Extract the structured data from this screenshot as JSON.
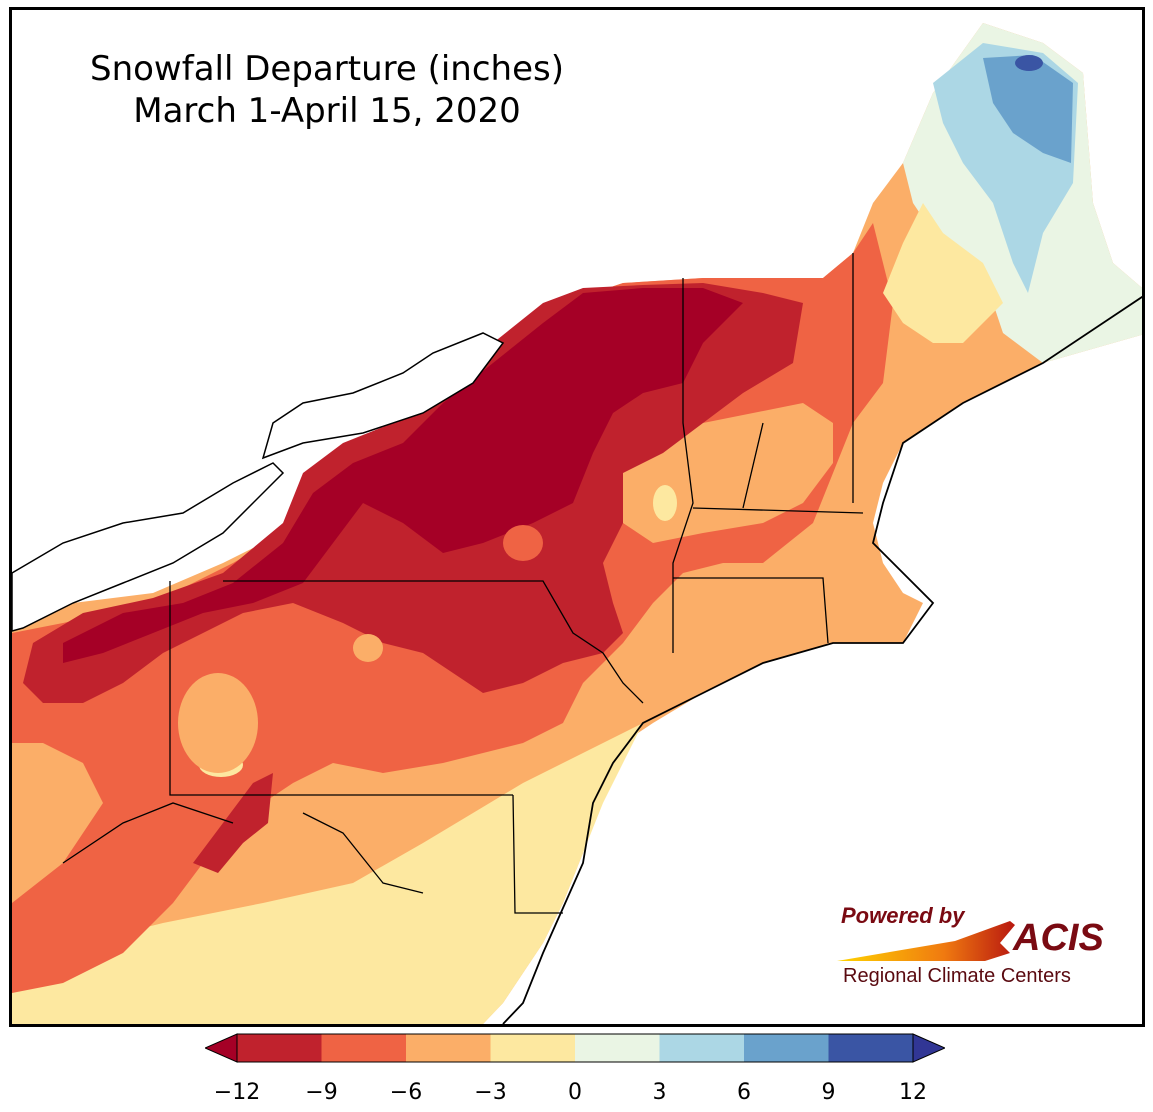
{
  "title_line1": "Snowfall Departure (inches)",
  "title_line2": "March 1-April 15, 2020",
  "logo": {
    "powered_by": "Powered by",
    "name": "ACIS",
    "tagline": "Regional Climate Centers"
  },
  "colorbar": {
    "ticks": [
      "−12",
      "−9",
      "−6",
      "−3",
      "0",
      "3",
      "6",
      "9",
      "12"
    ],
    "bins": [
      {
        "range": "-12 to -9",
        "color": "#c0222d"
      },
      {
        "range": "-9 to -6",
        "color": "#ef6344"
      },
      {
        "range": "-6 to -3",
        "color": "#fbae68"
      },
      {
        "range": "-3 to 0",
        "color": "#fde8a0"
      },
      {
        "range": "0 to 3",
        "color": "#eaf5e4"
      },
      {
        "range": "3 to 6",
        "color": "#acd7e5"
      },
      {
        "range": "6 to 9",
        "color": "#6aa2cc"
      },
      {
        "range": "9 to 12",
        "color": "#3a55a4"
      }
    ],
    "under_color": "#a50026",
    "over_color": "#313695"
  }
}
